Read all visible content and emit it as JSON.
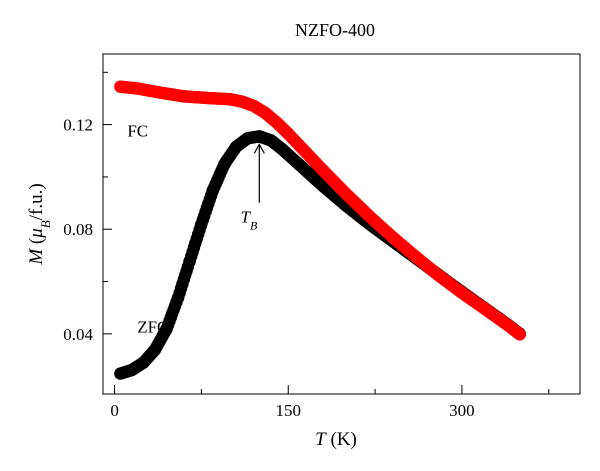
{
  "chart_data": {
    "type": "scatter",
    "title": "NZFO-400",
    "xlabel": {
      "symbol": "T",
      "unit": "(K)"
    },
    "ylabel": {
      "symbol": "M",
      "unit_open": "(",
      "mu": "μ",
      "mu_sub": "B",
      "unit_rest": "/f.u.)"
    },
    "xlim": [
      -10,
      402
    ],
    "ylim": [
      0.017,
      0.147
    ],
    "xticks": [
      0,
      150,
      300
    ],
    "xtick_labels": [
      "0",
      "150",
      "300"
    ],
    "yticks": [
      0.04,
      0.08,
      0.12
    ],
    "ytick_labels": [
      "0.04",
      "0.08",
      "0.12"
    ],
    "x_minor_ticks": [
      75,
      225,
      375
    ],
    "y_minor_ticks": [
      0.06,
      0.1,
      0.14
    ],
    "grid": false,
    "series": [
      {
        "name": "FC",
        "color": "#ff0000",
        "points": [
          [
            5,
            0.1345
          ],
          [
            20,
            0.1338
          ],
          [
            40,
            0.1322
          ],
          [
            60,
            0.1308
          ],
          [
            80,
            0.1302
          ],
          [
            100,
            0.1297
          ],
          [
            110,
            0.1288
          ],
          [
            120,
            0.1272
          ],
          [
            130,
            0.1245
          ],
          [
            140,
            0.1208
          ],
          [
            150,
            0.1165
          ],
          [
            165,
            0.1095
          ],
          [
            180,
            0.1025
          ],
          [
            200,
            0.0935
          ],
          [
            220,
            0.085
          ],
          [
            240,
            0.077
          ],
          [
            260,
            0.0695
          ],
          [
            280,
            0.0623
          ],
          [
            300,
            0.0557
          ],
          [
            320,
            0.0495
          ],
          [
            340,
            0.0432
          ],
          [
            350,
            0.0398
          ]
        ]
      },
      {
        "name": "ZFC",
        "color": "#000000",
        "points": [
          [
            5,
            0.0248
          ],
          [
            15,
            0.0262
          ],
          [
            25,
            0.029
          ],
          [
            35,
            0.034
          ],
          [
            45,
            0.042
          ],
          [
            55,
            0.054
          ],
          [
            65,
            0.068
          ],
          [
            75,
            0.082
          ],
          [
            85,
            0.095
          ],
          [
            95,
            0.105
          ],
          [
            105,
            0.1115
          ],
          [
            115,
            0.1148
          ],
          [
            125,
            0.1155
          ],
          [
            135,
            0.114
          ],
          [
            145,
            0.1105
          ],
          [
            160,
            0.1045
          ],
          [
            180,
            0.0965
          ],
          [
            200,
            0.089
          ],
          [
            220,
            0.082
          ],
          [
            240,
            0.0755
          ],
          [
            260,
            0.069
          ],
          [
            280,
            0.0625
          ],
          [
            300,
            0.056
          ],
          [
            320,
            0.0497
          ],
          [
            340,
            0.0434
          ],
          [
            350,
            0.04
          ]
        ]
      }
    ],
    "annotations": [
      {
        "text": "FC",
        "x": 20,
        "y": 0.1155
      },
      {
        "text": "ZFC",
        "x": 33,
        "y": 0.0405
      },
      {
        "text": "T",
        "subscript": "B",
        "x": 116,
        "y": 0.0825,
        "arrow_to": [
          125,
          0.1155
        ]
      }
    ]
  }
}
